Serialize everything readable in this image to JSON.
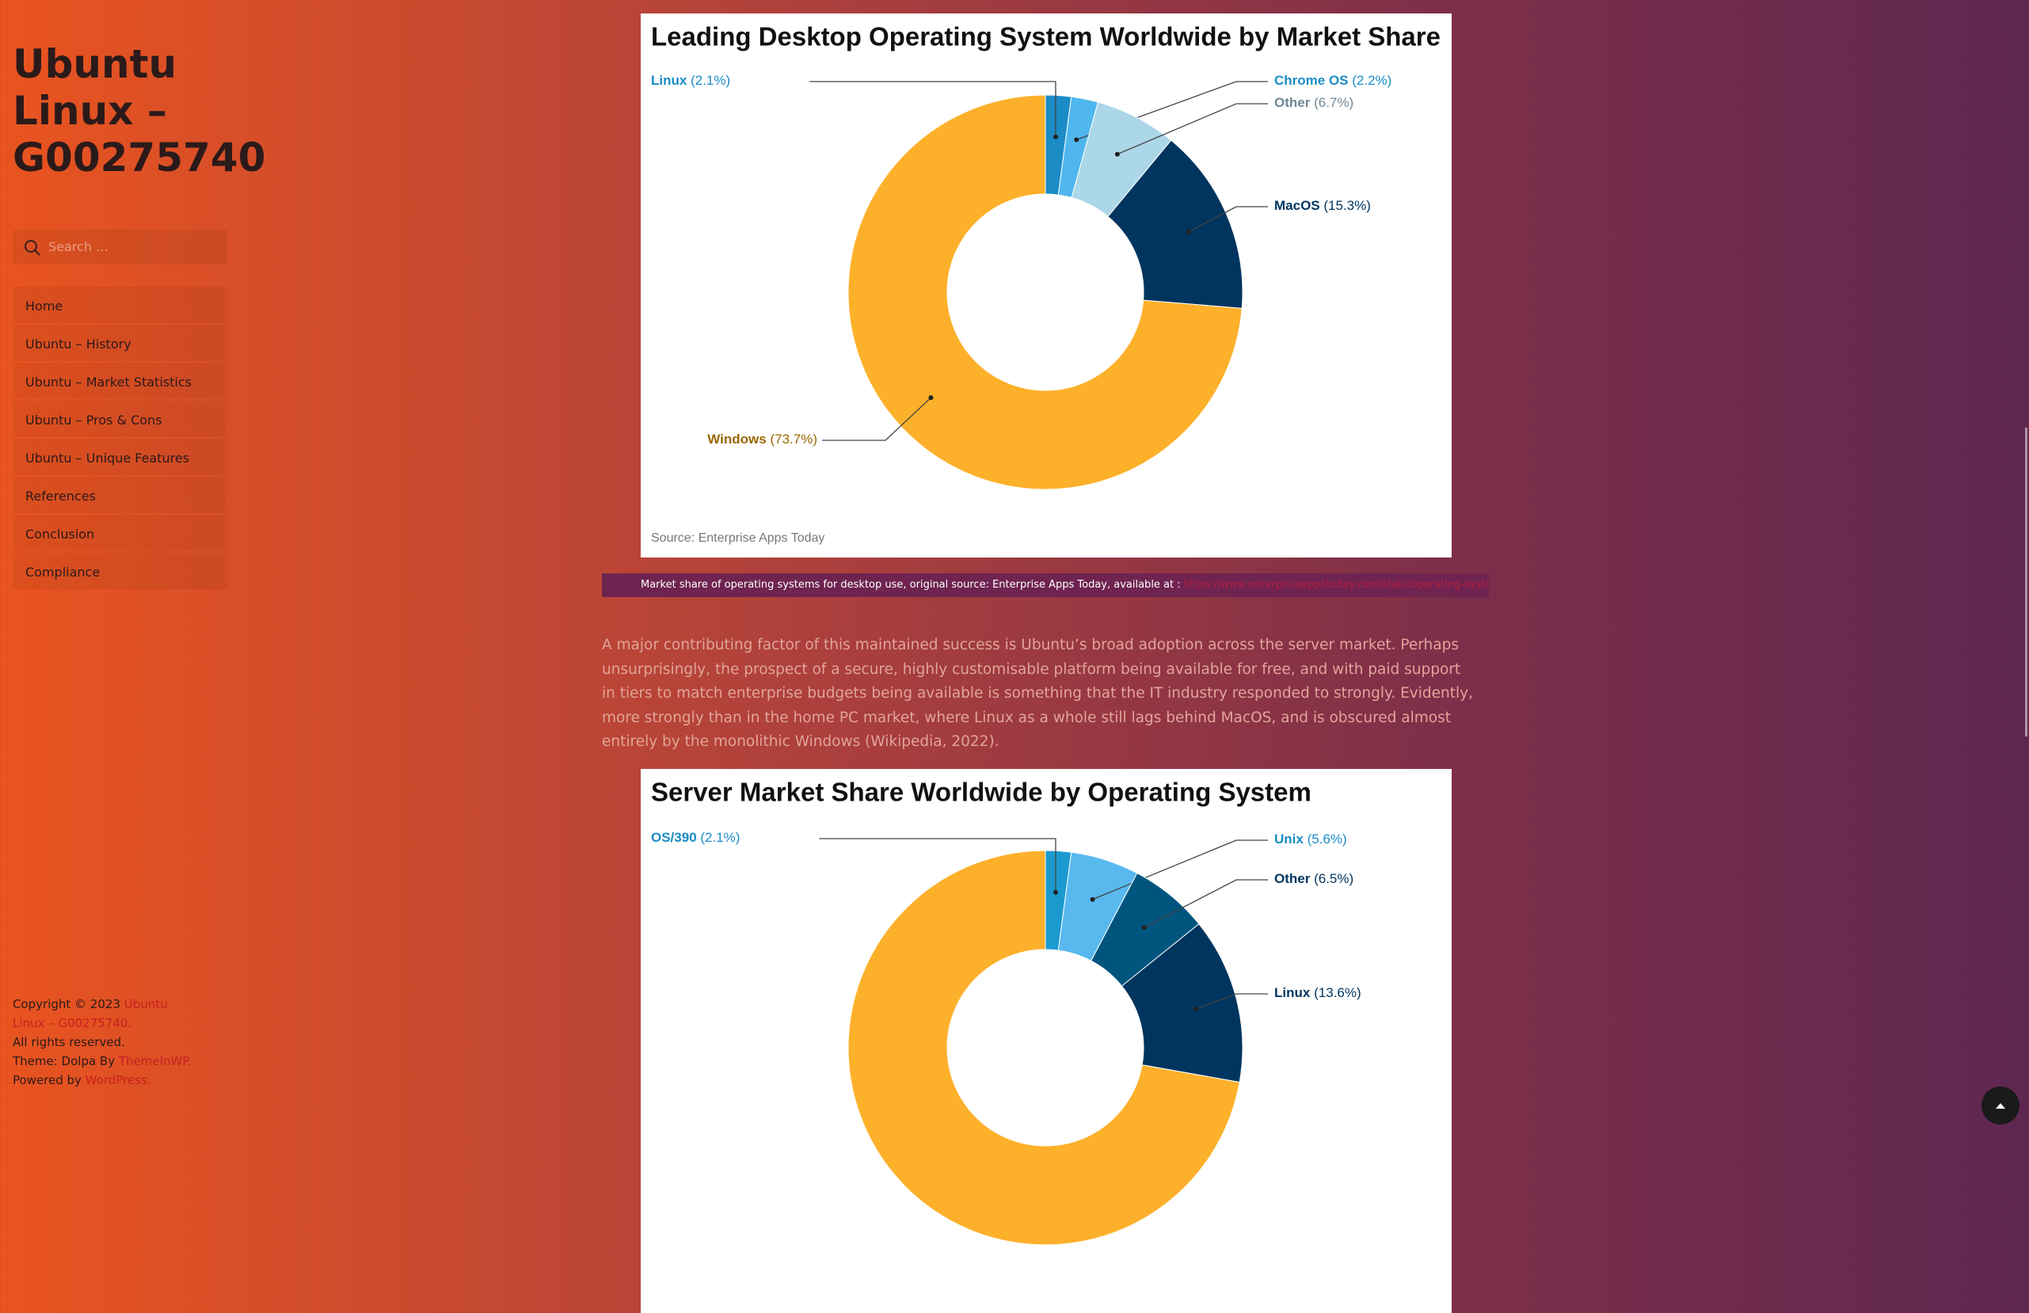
{
  "sidebar": {
    "site_title": "Ubuntu Linux – G00275740",
    "search_placeholder": "Search …",
    "nav": [
      "Home",
      "Ubuntu – History",
      "Ubuntu – Market Statistics",
      "Ubuntu – Pros & Cons",
      "Ubuntu – Unique Features",
      "References",
      "Conclusion",
      "Compliance"
    ]
  },
  "footer": {
    "copyright": "Copyright © 2023",
    "site_link": "Ubuntu Linux – G00275740.",
    "rights": "All rights reserved.",
    "theme": "Theme: Dolpa By",
    "theme_link": "ThemeInWP.",
    "powered": "Powered by",
    "powered_link": "WordPress."
  },
  "charts": [
    {
      "type": "donut",
      "title": "Leading Desktop Operating System Worldwide by Market Share",
      "names": [
        "Linux",
        "Chrome OS",
        "Other",
        "MacOS",
        "Windows"
      ],
      "values": [
        2.1,
        2.2,
        6.7,
        15.3,
        73.7
      ],
      "value_labels": [
        "(2.1%)",
        "(2.2%)",
        "(6.7%)",
        "(15.3%)",
        "(73.7%)"
      ],
      "colors": [
        "#1b8cc6",
        "#4fb6ee",
        "#acd7e8",
        "#00355f",
        "#fdb02a"
      ],
      "label_colors": [
        "#1b8cc6",
        "#1b8cc6",
        "#6f8894",
        "#00355f",
        "#9a6600"
      ],
      "source": "Source: Enterprise Apps Today"
    },
    {
      "type": "donut",
      "title": "Server Market Share Worldwide by Operating System",
      "names": [
        "OS/390",
        "Unix",
        "Other",
        "Linux",
        null
      ],
      "values": [
        2.1,
        5.6,
        6.5,
        13.6,
        72.2
      ],
      "value_labels": [
        "(2.1%)",
        "(5.6%)",
        "(6.5%)",
        "(13.6%)",
        null
      ],
      "colors": [
        "#1b9ad0",
        "#58b9ef",
        "#00557f",
        "#00355f",
        "#fdb02a"
      ],
      "label_colors": [
        "#1b8cc6",
        "#1b8cc6",
        "#00355f",
        "#00355f",
        "#9a6600"
      ]
    }
  ],
  "caption": {
    "text": "Market share of operating systems for desktop use, original source: Enterprise Apps Today, available at :",
    "link": "https://www.enterpriseappstoday.com/stats/operating-system-market-share.html"
  },
  "paragraph": "A major contributing factor of this maintained success is Ubuntu’s broad adoption across the server market. Perhaps unsurprisingly, the prospect of a secure, highly customisable platform being available for free, and with paid support in tiers to match enterprise budgets being available is something that the IT industry responded to strongly. Evidently, more strongly than in the home PC market, where Linux as a whole still lags behind MacOS, and is obscured almost entirely by the monolithic Windows (Wikipedia, 2022)."
}
